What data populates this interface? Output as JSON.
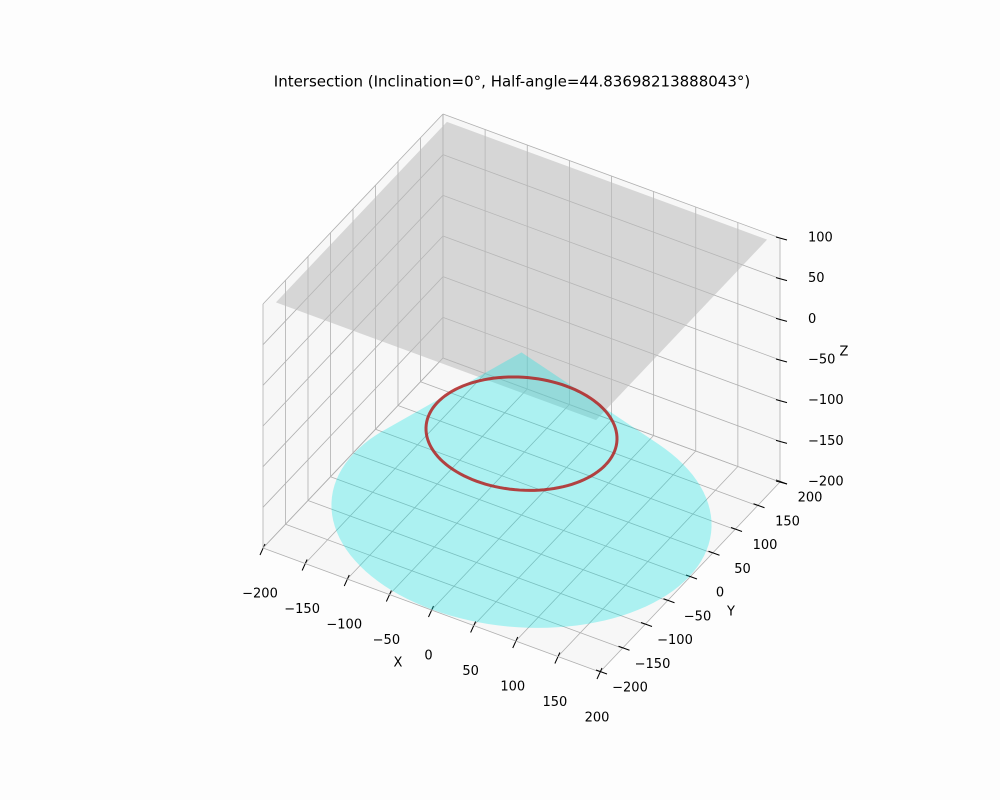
{
  "chart_data": {
    "type": "surface3d",
    "title": "Intersection (Inclination=0°, Half-angle=44.83698213888043°)",
    "xlabel": "X",
    "ylabel": "Y",
    "zlabel": "Z",
    "xlim": [
      -200,
      200
    ],
    "ylim": [
      -200,
      200
    ],
    "zlim": [
      -200,
      100
    ],
    "xticks": [
      {
        "value": -200,
        "label": "−200"
      },
      {
        "value": -150,
        "label": "−150"
      },
      {
        "value": -100,
        "label": "−100"
      },
      {
        "value": -50,
        "label": "−50"
      },
      0,
      50,
      100,
      150,
      200
    ],
    "yticks": [
      {
        "value": -200,
        "label": "−200"
      },
      {
        "value": -150,
        "label": "−150"
      },
      {
        "value": -100,
        "label": "−100"
      },
      {
        "value": -50,
        "label": "−50"
      },
      0,
      50,
      100,
      150,
      200
    ],
    "zticks": [
      {
        "value": -200,
        "label": "−200"
      },
      {
        "value": -150,
        "label": "−150"
      },
      {
        "value": -100,
        "label": "−100"
      },
      {
        "value": -50,
        "label": "−50"
      },
      0,
      50,
      100
    ],
    "grid": true,
    "plane": {
      "z": 100,
      "extent": [
        -190,
        190
      ],
      "color": "#bbbbbb"
    },
    "cone": {
      "apex_z": 0,
      "base_z": -200,
      "radius": 199,
      "color": "#00e5e5"
    },
    "circle": {
      "z": -100,
      "radius": 100,
      "color": "#b22222"
    }
  }
}
